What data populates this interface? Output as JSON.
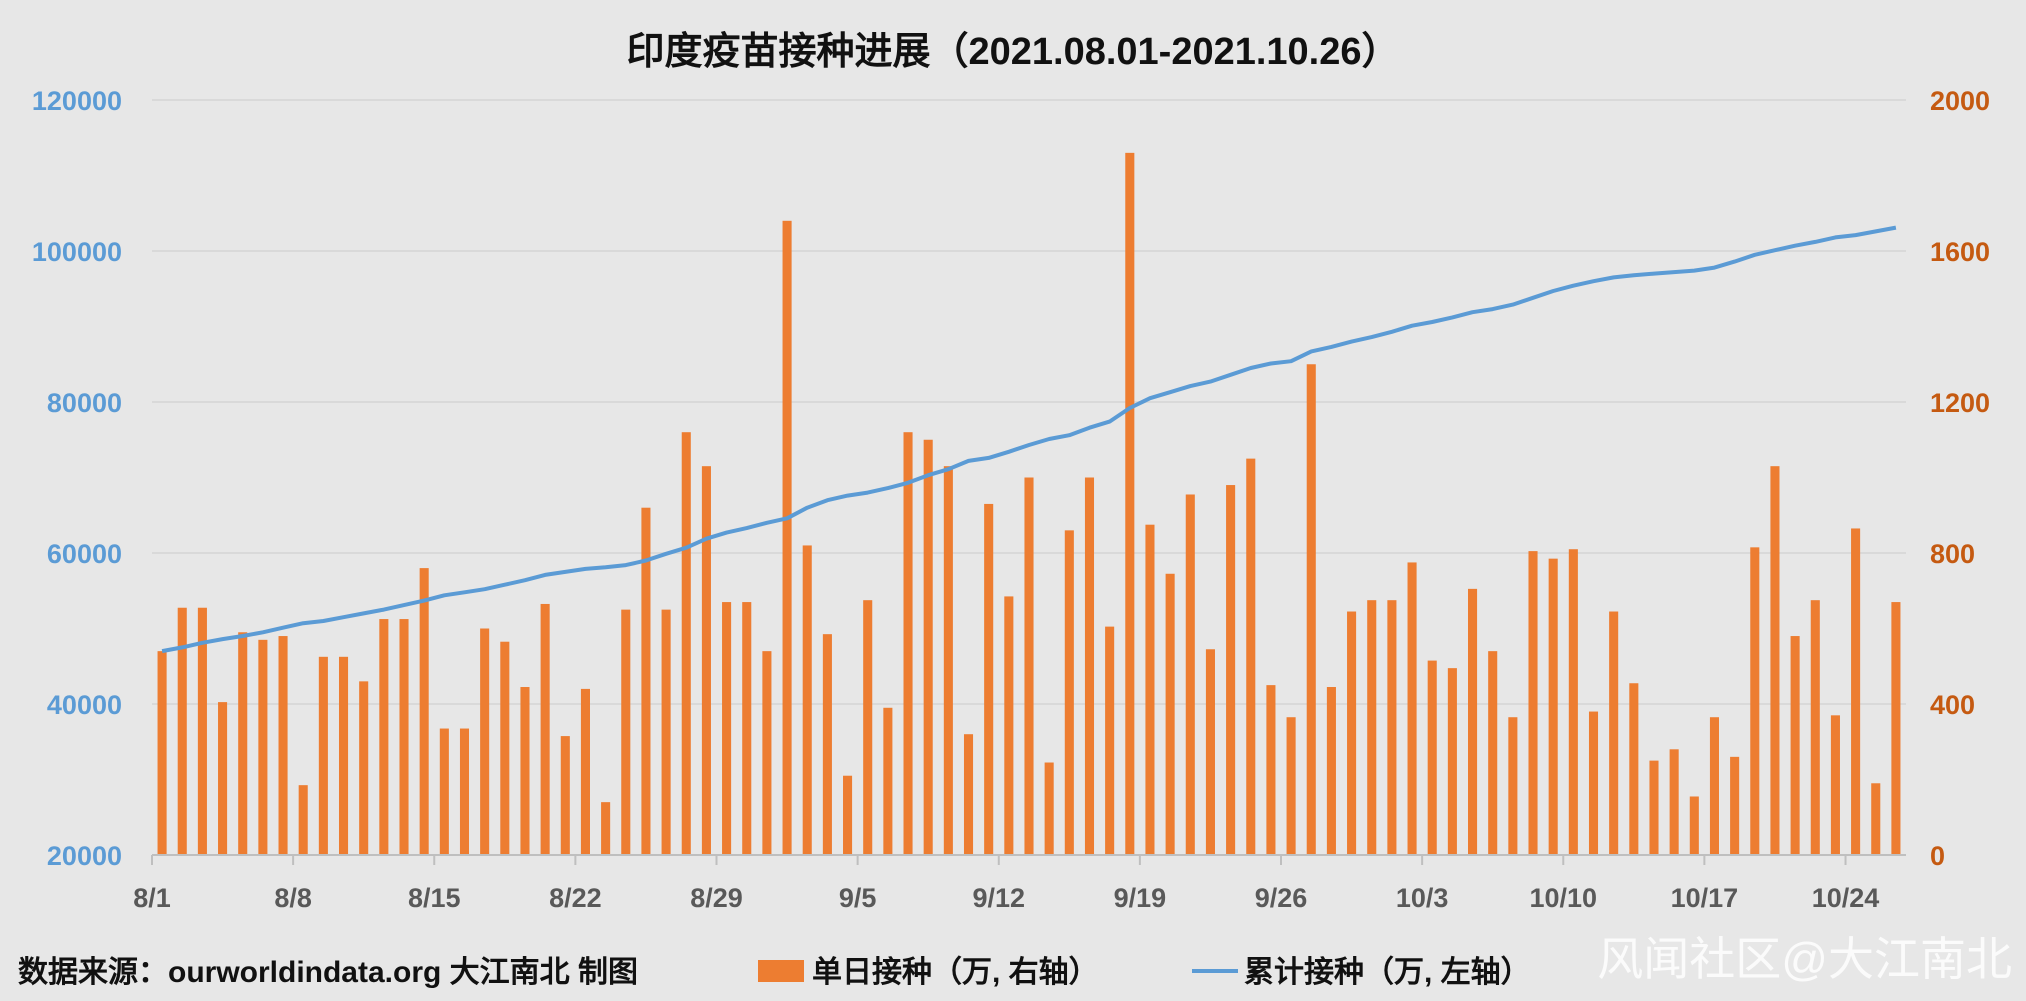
{
  "watermark": "风闻社区@大江南北",
  "source_note": "数据来源：ourworldindata.org 大江南北 制图",
  "colors": {
    "background": "#e7e7e7",
    "bars": "#ed7d31",
    "line": "#5b9bd5",
    "left_axis_text": "#5b9bd5",
    "right_axis_text": "#c55a11",
    "grid": "#d9d9d9",
    "x_axis_text": "#595959"
  },
  "chart_data": {
    "type": "bar",
    "title": "印度疫苗接种进展（2021.08.01-2021.10.26）",
    "grid": true,
    "legend_position": "bottom",
    "x_ticks": [
      "8/1",
      "8/8",
      "8/15",
      "8/22",
      "8/29",
      "9/5",
      "9/12",
      "9/19",
      "9/26",
      "10/3",
      "10/10",
      "10/17",
      "10/24"
    ],
    "y_left": {
      "min": 20000,
      "max": 120000,
      "ticks": [
        "20000",
        "40000",
        "60000",
        "80000",
        "100000",
        "120000"
      ]
    },
    "y_right": {
      "min": 0,
      "max": 2000,
      "ticks": [
        "0",
        "400",
        "800",
        "1200",
        "1600",
        "2000"
      ]
    },
    "series": [
      {
        "name": "单日接种（万, 右轴）",
        "type": "bar",
        "axis": "right",
        "values": [
          540,
          655,
          655,
          405,
          590,
          570,
          580,
          185,
          525,
          525,
          460,
          625,
          625,
          760,
          335,
          335,
          600,
          565,
          445,
          665,
          315,
          440,
          140,
          650,
          920,
          650,
          1120,
          1030,
          670,
          670,
          540,
          1680,
          820,
          585,
          210,
          675,
          390,
          1120,
          1100,
          1030,
          320,
          930,
          685,
          1000,
          245,
          860,
          1000,
          605,
          1860,
          875,
          745,
          955,
          545,
          980,
          1050,
          450,
          365,
          1300,
          445,
          645,
          675,
          675,
          775,
          515,
          495,
          705,
          540,
          365,
          805,
          785,
          810,
          380,
          645,
          455,
          250,
          280,
          155,
          365,
          260,
          815,
          1030,
          580,
          675,
          370,
          865,
          190,
          670
        ]
      },
      {
        "name": "累计接种（万, 左轴）",
        "type": "line",
        "axis": "left",
        "values": [
          47000,
          47500,
          48100,
          48600,
          49000,
          49500,
          50100,
          50700,
          51000,
          51500,
          52000,
          52500,
          53100,
          53700,
          54400,
          54800,
          55200,
          55800,
          56400,
          57100,
          57500,
          57900,
          58100,
          58400,
          59000,
          59900,
          60700,
          61900,
          62700,
          63300,
          64000,
          64600,
          66000,
          67000,
          67600,
          68000,
          68600,
          69300,
          70300,
          71100,
          72200,
          72600,
          73400,
          74300,
          75100,
          75600,
          76600,
          77400,
          79200,
          80500,
          81300,
          82100,
          82700,
          83600,
          84500,
          85100,
          85400,
          86700,
          87300,
          88000,
          88600,
          89300,
          90100,
          90600,
          91200,
          91900,
          92300,
          92900,
          93800,
          94700,
          95400,
          96000,
          96500,
          96800,
          97000,
          97200,
          97400,
          97800,
          98600,
          99500,
          100100,
          100700,
          101200,
          101800,
          102100,
          102600,
          103100
        ]
      }
    ]
  }
}
